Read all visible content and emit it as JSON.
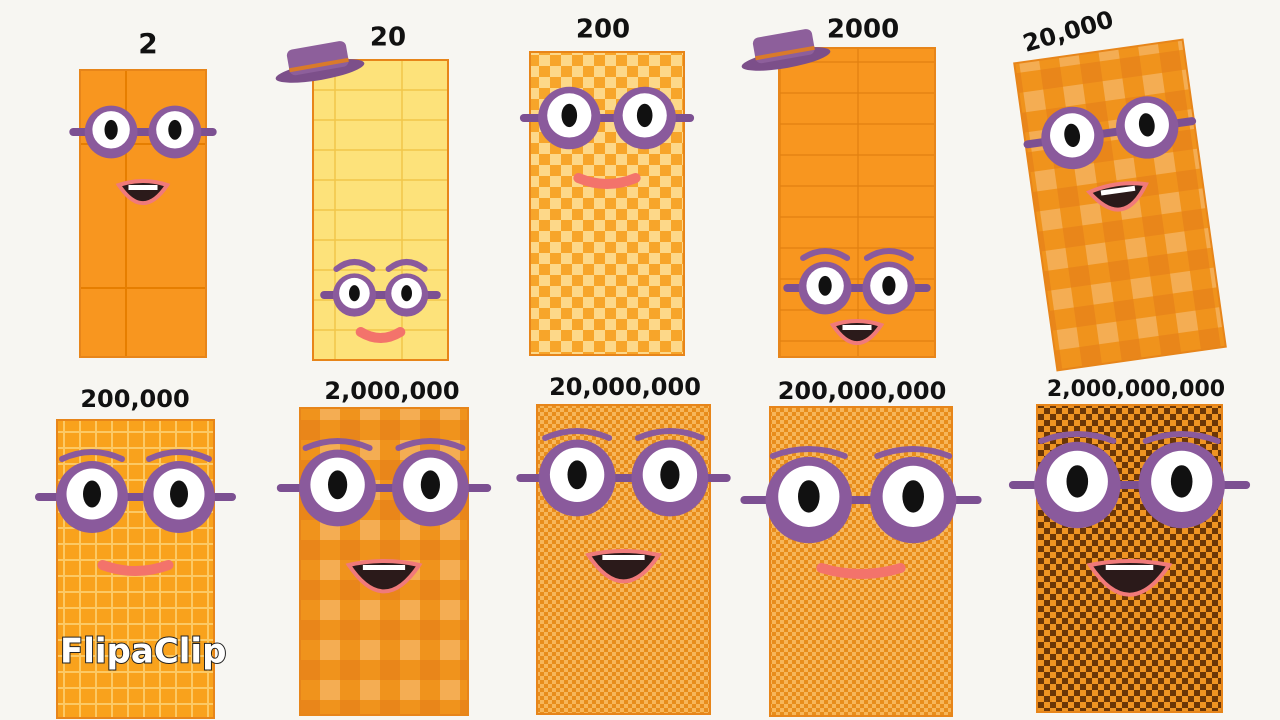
{
  "characters": [
    {
      "label": "2"
    },
    {
      "label": "20"
    },
    {
      "label": "200"
    },
    {
      "label": "2000"
    },
    {
      "label": "20,000"
    },
    {
      "label": "200,000"
    },
    {
      "label": "2,000,000"
    },
    {
      "label": "20,000,000"
    },
    {
      "label": "200,000,000"
    },
    {
      "label": "2,000,000,000"
    }
  ],
  "watermark": {
    "text": "FlipaClip"
  }
}
